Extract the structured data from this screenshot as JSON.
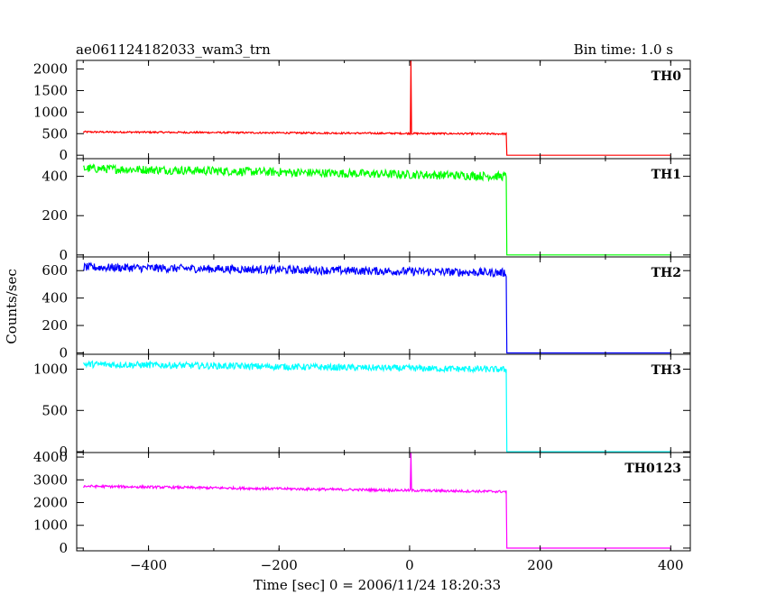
{
  "header": {
    "title": "ae061124182033_wam3_trn",
    "bin_time": "Bin time: 1.0 s"
  },
  "chart_data": {
    "type": "line",
    "title": "ae061124182033_wam3_trn",
    "subtitle": "Bin time: 1.0 s",
    "xlabel": "Time [sec] 0 = 2006/11/24 18:20:33",
    "ylabel": "Counts/sec",
    "xlim": [
      -510,
      430
    ],
    "xticks": [
      -400,
      -200,
      0,
      200,
      400
    ],
    "xtick_labels": [
      "−400",
      "−200",
      "0",
      "200",
      "400"
    ],
    "grid": false,
    "panels": [
      {
        "name": "TH0",
        "color": "#ff0000",
        "ylim": [
          -80,
          2200
        ],
        "yticks": [
          0,
          500,
          1000,
          1500,
          2000
        ],
        "start": 540,
        "end": 495,
        "noise": 20,
        "plateau_end": 148,
        "after": 0,
        "spike_x": 2,
        "spike_y": 2200
      },
      {
        "name": "TH1",
        "color": "#00ff00",
        "ylim": [
          -10,
          490
        ],
        "yticks": [
          0,
          200,
          400
        ],
        "start": 440,
        "end": 400,
        "noise": 22,
        "plateau_end": 148,
        "after": 0
      },
      {
        "name": "TH2",
        "color": "#0000ff",
        "ylim": [
          -10,
          700
        ],
        "yticks": [
          0,
          200,
          400,
          600
        ],
        "start": 625,
        "end": 585,
        "noise": 30,
        "plateau_end": 148,
        "after": 0
      },
      {
        "name": "TH3",
        "color": "#00ffff",
        "ylim": [
          -10,
          1180
        ],
        "yticks": [
          0,
          500,
          1000
        ],
        "start": 1060,
        "end": 995,
        "noise": 40,
        "plateau_end": 148,
        "after": 0
      },
      {
        "name": "TH0123",
        "color": "#ff00ff",
        "ylim": [
          -120,
          4200
        ],
        "yticks": [
          0,
          1000,
          2000,
          3000,
          4000
        ],
        "start": 2720,
        "end": 2480,
        "noise": 55,
        "plateau_end": 148,
        "after": 0,
        "spike_x": 2,
        "spike_y": 4200
      }
    ]
  }
}
